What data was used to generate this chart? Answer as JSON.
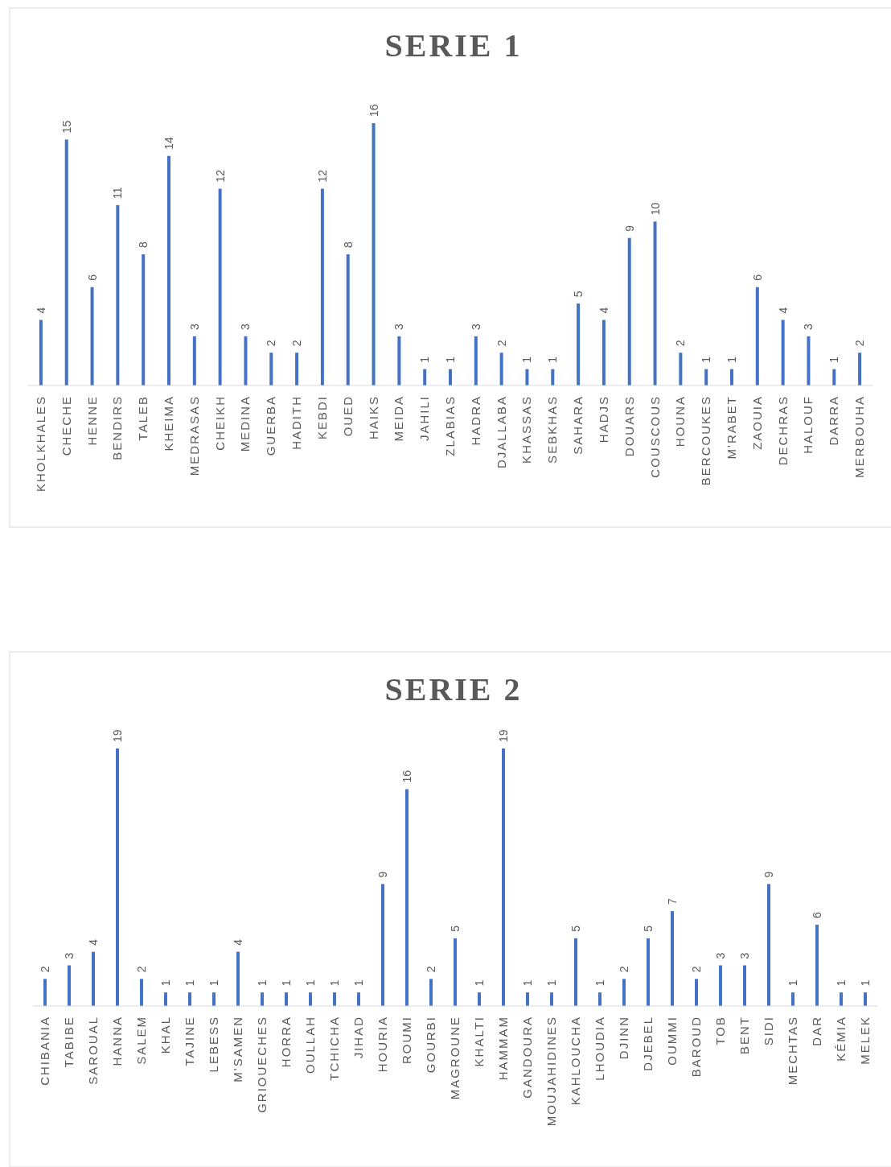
{
  "chart_data": [
    {
      "type": "bar",
      "title": "SERIE 1",
      "categories": [
        "KHOLKHALES",
        "CHECHE",
        "HENNE",
        "BENDIRS",
        "TALEB",
        "KHEIMA",
        "MEDRASAS",
        "CHEIKH",
        "MEDINA",
        "GUERBA",
        "HADITH",
        "KEBDI",
        "OUED",
        "HAIKS",
        "MEIDA",
        "JAHILI",
        "ZLABIAS",
        "HADRA",
        "DJALLABA",
        "KHASSAS",
        "SEBKHAS",
        "SAHARA",
        "HADJS",
        "DOUARS",
        "COUSCOUS",
        "HOUNA",
        "BERCOUKES",
        "M'RABET",
        "ZAOUIA",
        "DECHRAS",
        "HALOUF",
        "DARRA",
        "MERBOUHA"
      ],
      "values": [
        4,
        15,
        6,
        11,
        8,
        14,
        3,
        12,
        3,
        2,
        2,
        12,
        8,
        16,
        3,
        1,
        1,
        3,
        2,
        1,
        1,
        5,
        4,
        9,
        10,
        2,
        1,
        1,
        6,
        4,
        3,
        1,
        2
      ],
      "color": "#4472c4",
      "data_labels": true
    },
    {
      "type": "bar",
      "title": "SERIE 2",
      "categories": [
        "CHIBANIA",
        "TABIBE",
        "SAROUAL",
        "HANNA",
        "SALEM",
        "KHAL",
        "TAJINE",
        "LEBESS",
        "M'SAMEN",
        "GRIOUECHES",
        "HORRA",
        "OULLAH",
        "TCHICHA",
        "JIHAD",
        "HOURIA",
        "ROUMI",
        "GOURBI",
        "MAGROUNE",
        "KHALTI",
        "HAMMAM",
        "GANDOURA",
        "MOUJAHIDINES",
        "KAHLOUCHA",
        "LHOUDIA",
        "DJINN",
        "DJEBEL",
        "OUMMI",
        "BAROUD",
        "TOB",
        "BENT",
        "SIDI",
        "MECHTAS",
        "DAR",
        "KÉMIA",
        "MELEK"
      ],
      "values": [
        2,
        3,
        4,
        19,
        2,
        1,
        1,
        1,
        4,
        1,
        1,
        1,
        1,
        1,
        9,
        16,
        2,
        5,
        1,
        19,
        1,
        1,
        5,
        1,
        2,
        5,
        7,
        2,
        3,
        3,
        9,
        1,
        6,
        1,
        1
      ],
      "color": "#4472c4",
      "data_labels": true
    }
  ]
}
